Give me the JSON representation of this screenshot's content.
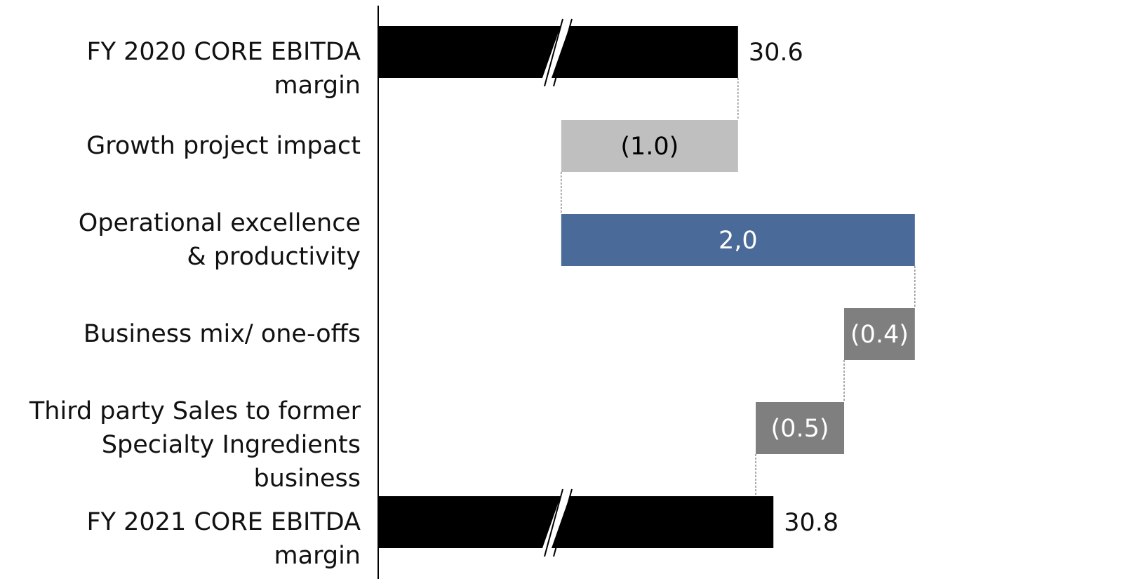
{
  "chart_data": {
    "type": "bar",
    "subtype": "waterfall",
    "orientation": "horizontal",
    "axis_break_shown_on": [
      "FY 2020 CORE EBITDA margin",
      "FY 2021 CORE EBITDA margin"
    ],
    "bars": [
      {
        "label": "FY 2020 CORE EBITDA margin",
        "display": "30.6",
        "value": 30.6,
        "start": 0,
        "end": 30.6,
        "kind": "total",
        "color": "#000000",
        "value_position": "outside"
      },
      {
        "label": "Growth project impact",
        "display": "(1.0)",
        "value": -1.0,
        "start": 30.6,
        "end": 29.6,
        "kind": "delta",
        "color": "#bfbfbf",
        "value_position": "inside",
        "text_color": "#000000"
      },
      {
        "label": "Operational excellence\n& productivity",
        "display": "2,0",
        "value": 2.0,
        "start": 29.6,
        "end": 31.6,
        "kind": "delta",
        "color": "#4a6a99",
        "value_position": "inside",
        "text_color": "#ffffff"
      },
      {
        "label": "Business mix/ one-offs",
        "display": "(0.4)",
        "value": -0.4,
        "start": 31.6,
        "end": 31.2,
        "kind": "delta",
        "color": "#7f7f7f",
        "value_position": "inside",
        "text_color": "#ffffff"
      },
      {
        "label": "Third party Sales to former\nSpecialty Ingredients business",
        "display": "(0.5)",
        "value": -0.5,
        "start": 31.2,
        "end": 30.7,
        "kind": "delta",
        "color": "#7f7f7f",
        "value_position": "inside",
        "text_color": "#ffffff"
      },
      {
        "label": "FY 2021 CORE EBITDA margin",
        "display": "30.8",
        "value": 30.8,
        "start": 0,
        "end": 30.8,
        "kind": "total",
        "color": "#000000",
        "value_position": "outside"
      }
    ],
    "connector_style": "dashed",
    "title": "",
    "xlabel": "",
    "ylabel": ""
  }
}
